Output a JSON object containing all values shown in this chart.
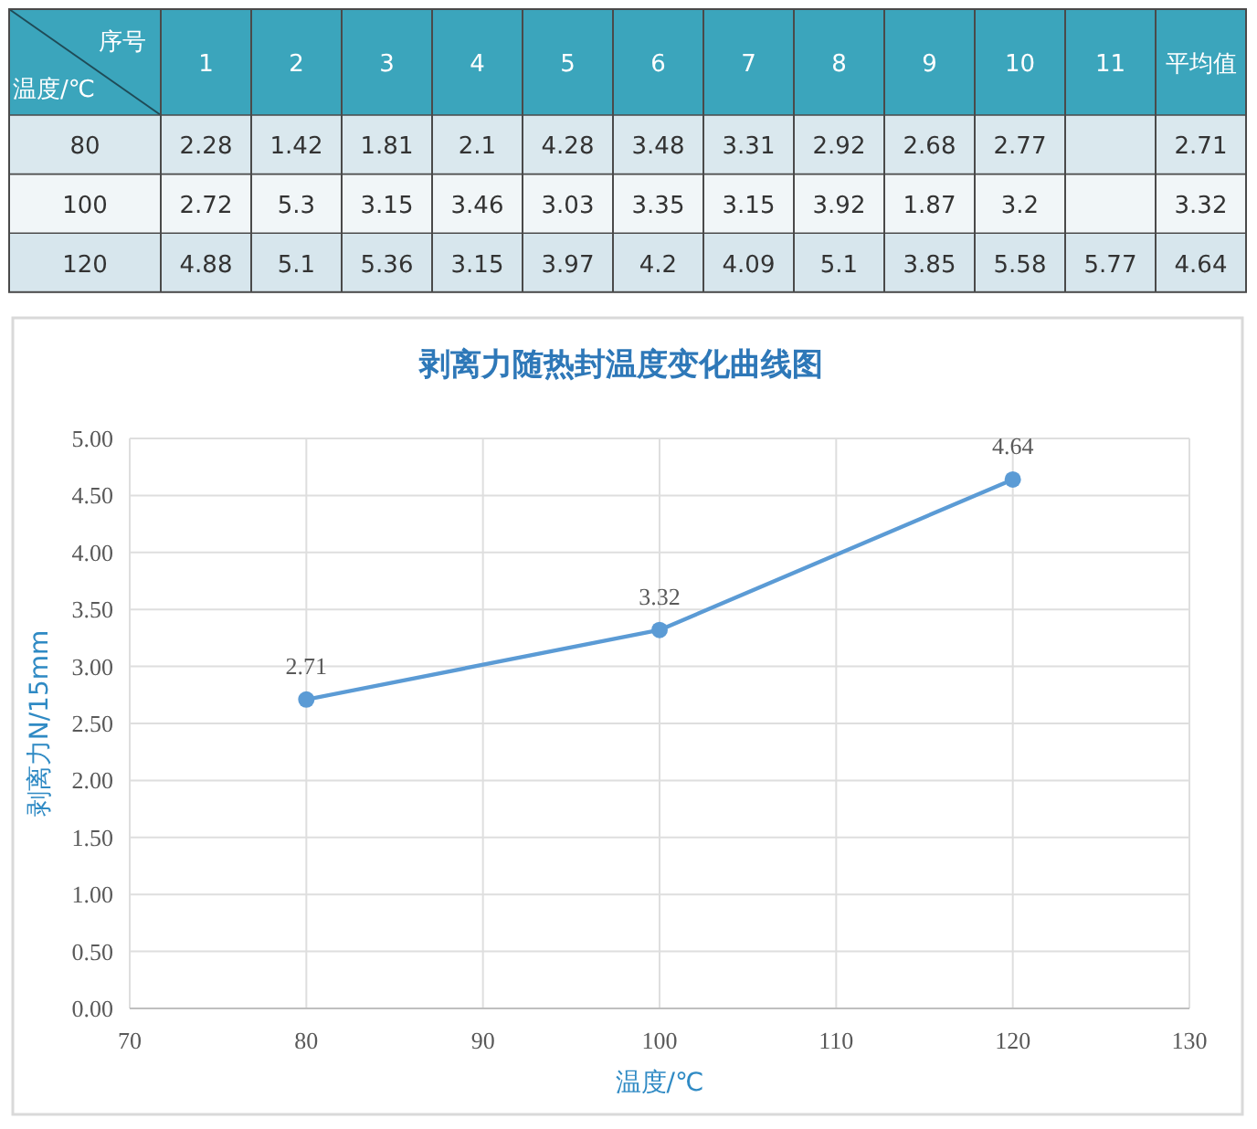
{
  "chart_data": [
    {
      "type": "heatmap",
      "xlabel": "序号",
      "ylabel": "温度/℃",
      "categories": [
        "1",
        "2",
        "3",
        "4",
        "5",
        "6",
        "7",
        "8",
        "9",
        "10",
        "11",
        "平均值"
      ],
      "y_categories": [
        "80",
        "100",
        "120"
      ],
      "data_labels": true,
      "cells": [
        [
          2.28,
          1.42,
          1.81,
          2.1,
          4.28,
          3.48,
          3.31,
          2.92,
          2.68,
          2.77,
          null,
          2.71
        ],
        [
          2.72,
          5.3,
          3.15,
          3.46,
          3.03,
          3.35,
          3.15,
          3.92,
          1.87,
          3.2,
          null,
          3.32
        ],
        [
          4.88,
          5.1,
          5.36,
          3.15,
          3.97,
          4.2,
          4.09,
          5.1,
          3.85,
          5.58,
          5.77,
          4.64
        ]
      ]
    },
    {
      "type": "line",
      "title": "剥离力随热封温度变化曲线图",
      "xlabel": "温度/℃",
      "ylabel": "剥离力N/15mm",
      "x": [
        80,
        100,
        120
      ],
      "values": [
        2.71,
        3.32,
        4.64
      ],
      "color": "#5b9bd5",
      "marker": "circle",
      "data_labels": true,
      "grid": true,
      "xlim": [
        70,
        130
      ],
      "xticks": [
        70,
        80,
        90,
        100,
        110,
        120,
        130
      ],
      "ylim": [
        0,
        5
      ],
      "yticks": [
        {
          "value": 0,
          "label": "0.00"
        },
        {
          "value": 0.5,
          "label": "0.50"
        },
        {
          "value": 1,
          "label": "1.00"
        },
        {
          "value": 1.5,
          "label": "1.50"
        },
        {
          "value": 2,
          "label": "2.00"
        },
        {
          "value": 2.5,
          "label": "2.50"
        },
        {
          "value": 3,
          "label": "3.00"
        },
        {
          "value": 3.5,
          "label": "3.50"
        },
        {
          "value": 4,
          "label": "4.00"
        },
        {
          "value": 4.5,
          "label": "4.50"
        },
        {
          "value": 5,
          "label": "5.00"
        }
      ]
    }
  ]
}
